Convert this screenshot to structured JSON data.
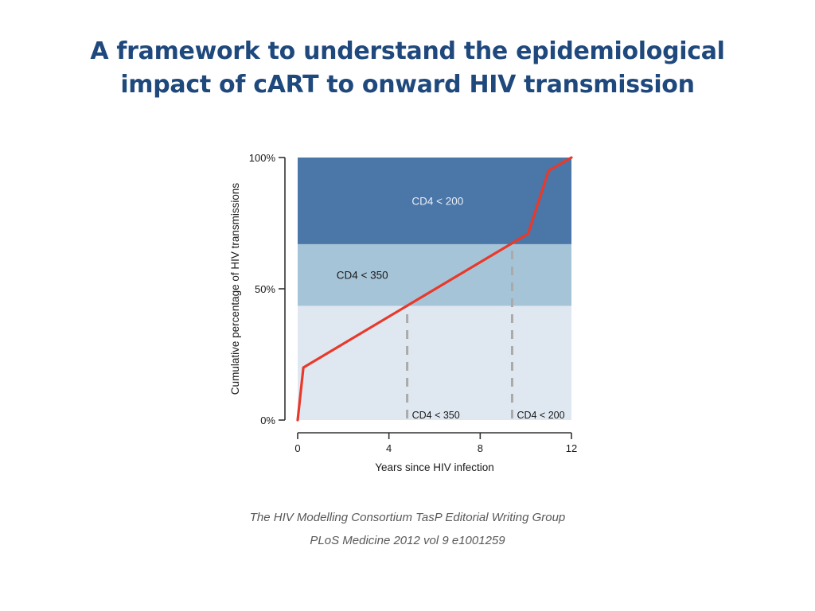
{
  "slide": {
    "title_line1": "A framework to understand the epidemiological",
    "title_line2": "impact of cART to onward HIV transmission",
    "citation_line1": "The HIV Modelling Consortium TasP Editorial Writing Group",
    "citation_line2": "PLoS Medicine 2012 vol 9 e1001259"
  },
  "chart_data": {
    "type": "line",
    "title": "",
    "xlabel": "Years since HIV infection",
    "ylabel": "Cumulative percentage of HIV transmissions",
    "xlim": [
      0,
      12
    ],
    "ylim": [
      0,
      100
    ],
    "x_ticks": [
      0,
      4,
      8,
      12
    ],
    "x_tick_labels": [
      "0",
      "4",
      "8",
      "12"
    ],
    "y_ticks": [
      0,
      50,
      100
    ],
    "y_tick_labels": [
      "0%",
      "50%",
      "100%"
    ],
    "grid": false,
    "series": [
      {
        "x": [
          0,
          0.25,
          10.1,
          11.0,
          12.0
        ],
        "y": [
          0,
          20,
          71,
          95,
          100
        ]
      }
    ],
    "bands": [
      {
        "label": "",
        "y_from": 0,
        "y_to": 43.5,
        "color": "#dfe8f1"
      },
      {
        "label": "CD4 < 350",
        "y_from": 43.5,
        "y_to": 67,
        "color": "#a6c4d8"
      },
      {
        "label": "CD4 < 200",
        "y_from": 67,
        "y_to": 100,
        "color": "#4a76a8"
      }
    ],
    "thresholds": [
      {
        "label": "CD4 < 350",
        "x": 4.8
      },
      {
        "label": "CD4 < 200",
        "x": 9.4
      }
    ],
    "colors": {
      "line": "#e8392b",
      "axis": "#333333",
      "dashes": "#aaaaaa",
      "band_label_dark": "#e8eef6",
      "band_label_light": "#1a1a1a"
    }
  }
}
